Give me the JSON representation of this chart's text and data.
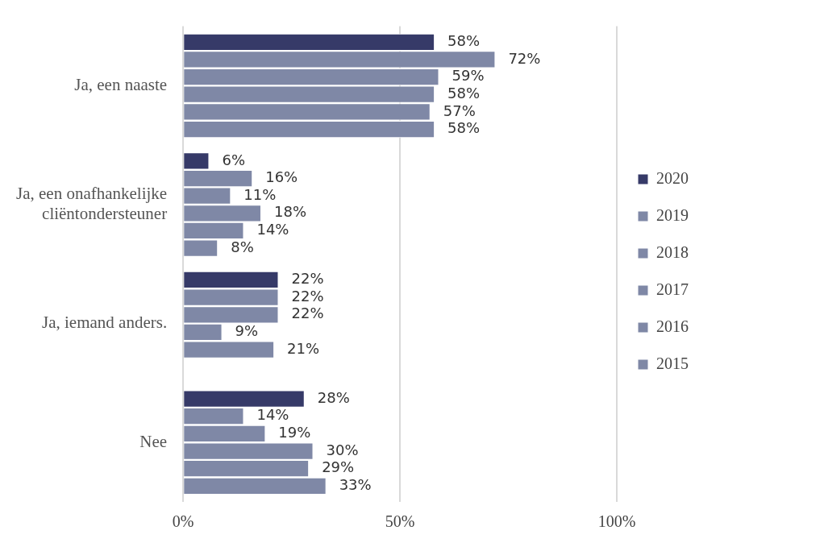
{
  "chart_data": {
    "type": "bar",
    "orientation": "horizontal",
    "categories": [
      "Ja, een naaste",
      "Ja, een onafhankelijke cliëntondersteuner",
      "Ja, iemand anders.",
      "Nee"
    ],
    "series": [
      {
        "name": "2020",
        "color": "#363a68",
        "values": [
          58,
          6,
          22,
          28
        ],
        "value_labels": [
          "58%",
          "6%",
          "22%",
          "28%"
        ]
      },
      {
        "name": "2019",
        "color": "#7f88a6",
        "values": [
          72,
          16,
          22,
          14
        ],
        "value_labels": [
          "72%",
          "16%",
          "22%",
          "14%"
        ]
      },
      {
        "name": "2018",
        "color": "#7f88a6",
        "values": [
          59,
          11,
          22,
          19
        ],
        "value_labels": [
          "59%",
          "11%",
          "22%",
          "19%"
        ]
      },
      {
        "name": "2017",
        "color": "#7f88a6",
        "values": [
          58,
          18,
          9,
          30
        ],
        "value_labels": [
          "58%",
          "18%",
          "9%",
          "30%"
        ]
      },
      {
        "name": "2016",
        "color": "#7f88a6",
        "values": [
          57,
          14,
          21,
          29
        ],
        "value_labels": [
          "57%",
          "14%",
          "21%",
          "29%"
        ]
      },
      {
        "name": "2015",
        "color": "#7f88a6",
        "values": [
          58,
          8,
          null,
          33
        ],
        "value_labels": [
          "58%",
          "8%",
          null,
          "33%"
        ]
      }
    ],
    "xlim": [
      0,
      100
    ],
    "xticks": [
      {
        "value": 0,
        "label": "0%"
      },
      {
        "value": 50,
        "label": "50%"
      },
      {
        "value": 100,
        "label": "100%"
      }
    ],
    "grid": "x",
    "legend": "right"
  }
}
